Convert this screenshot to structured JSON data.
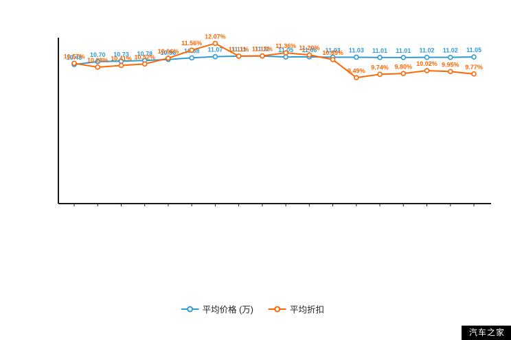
{
  "chart_data": {
    "type": "line",
    "title": "",
    "xlabel": "",
    "ylabel": "",
    "ylim": [
      0,
      12.5
    ],
    "grid": false,
    "legend_position": "bottom",
    "x_tick_labels": [
      "",
      "",
      "",
      "",
      "",
      "",
      "",
      "",
      "",
      "",
      "",
      "",
      "",
      "",
      "",
      "",
      "",
      ""
    ],
    "series": [
      {
        "name": "平均价格 (万)",
        "color": "#2e9bd6",
        "values": [
          10.48,
          10.7,
          10.73,
          10.78,
          10.86,
          10.98,
          11.07,
          11.11,
          11.12,
          11.05,
          11.06,
          11.03,
          11.03,
          11.01,
          11.01,
          11.02,
          11.02,
          11.05
        ],
        "labels": [
          "10.48",
          "10.70",
          "10.73",
          "10.78",
          "10.86",
          "10.98",
          "11.07",
          "11.11",
          "11.12",
          "11.05",
          "11.06",
          "11.03",
          "11.03",
          "11.01",
          "11.01",
          "11.02",
          "11.02",
          "11.05"
        ]
      },
      {
        "name": "平均折扣",
        "color": "#ff6600",
        "values": [
          10.57,
          10.28,
          10.41,
          10.52,
          10.96,
          11.56,
          12.07,
          11.11,
          11.13,
          11.36,
          11.2,
          10.85,
          9.49,
          9.74,
          9.8,
          10.02,
          9.95,
          9.77
        ],
        "labels": [
          "10.57%",
          "10.28%",
          "10.41%",
          "10.52%",
          "10.96%",
          "11.56%",
          "12.07%",
          "11.11%",
          "11.13%",
          "11.36%",
          "11.20%",
          "10.85%",
          "9.49%",
          "9.74%",
          "9.80%",
          "10.02%",
          "9.95%",
          "9.77%"
        ]
      }
    ]
  },
  "legend": {
    "items": [
      {
        "label": "平均价格 (万)",
        "color": "#2e9bd6"
      },
      {
        "label": "平均折扣",
        "color": "#ff6600"
      }
    ]
  },
  "watermark": {
    "text": "汽车之家"
  },
  "colors": {
    "axis": "#1a1a1a",
    "background": "#ffffff"
  }
}
